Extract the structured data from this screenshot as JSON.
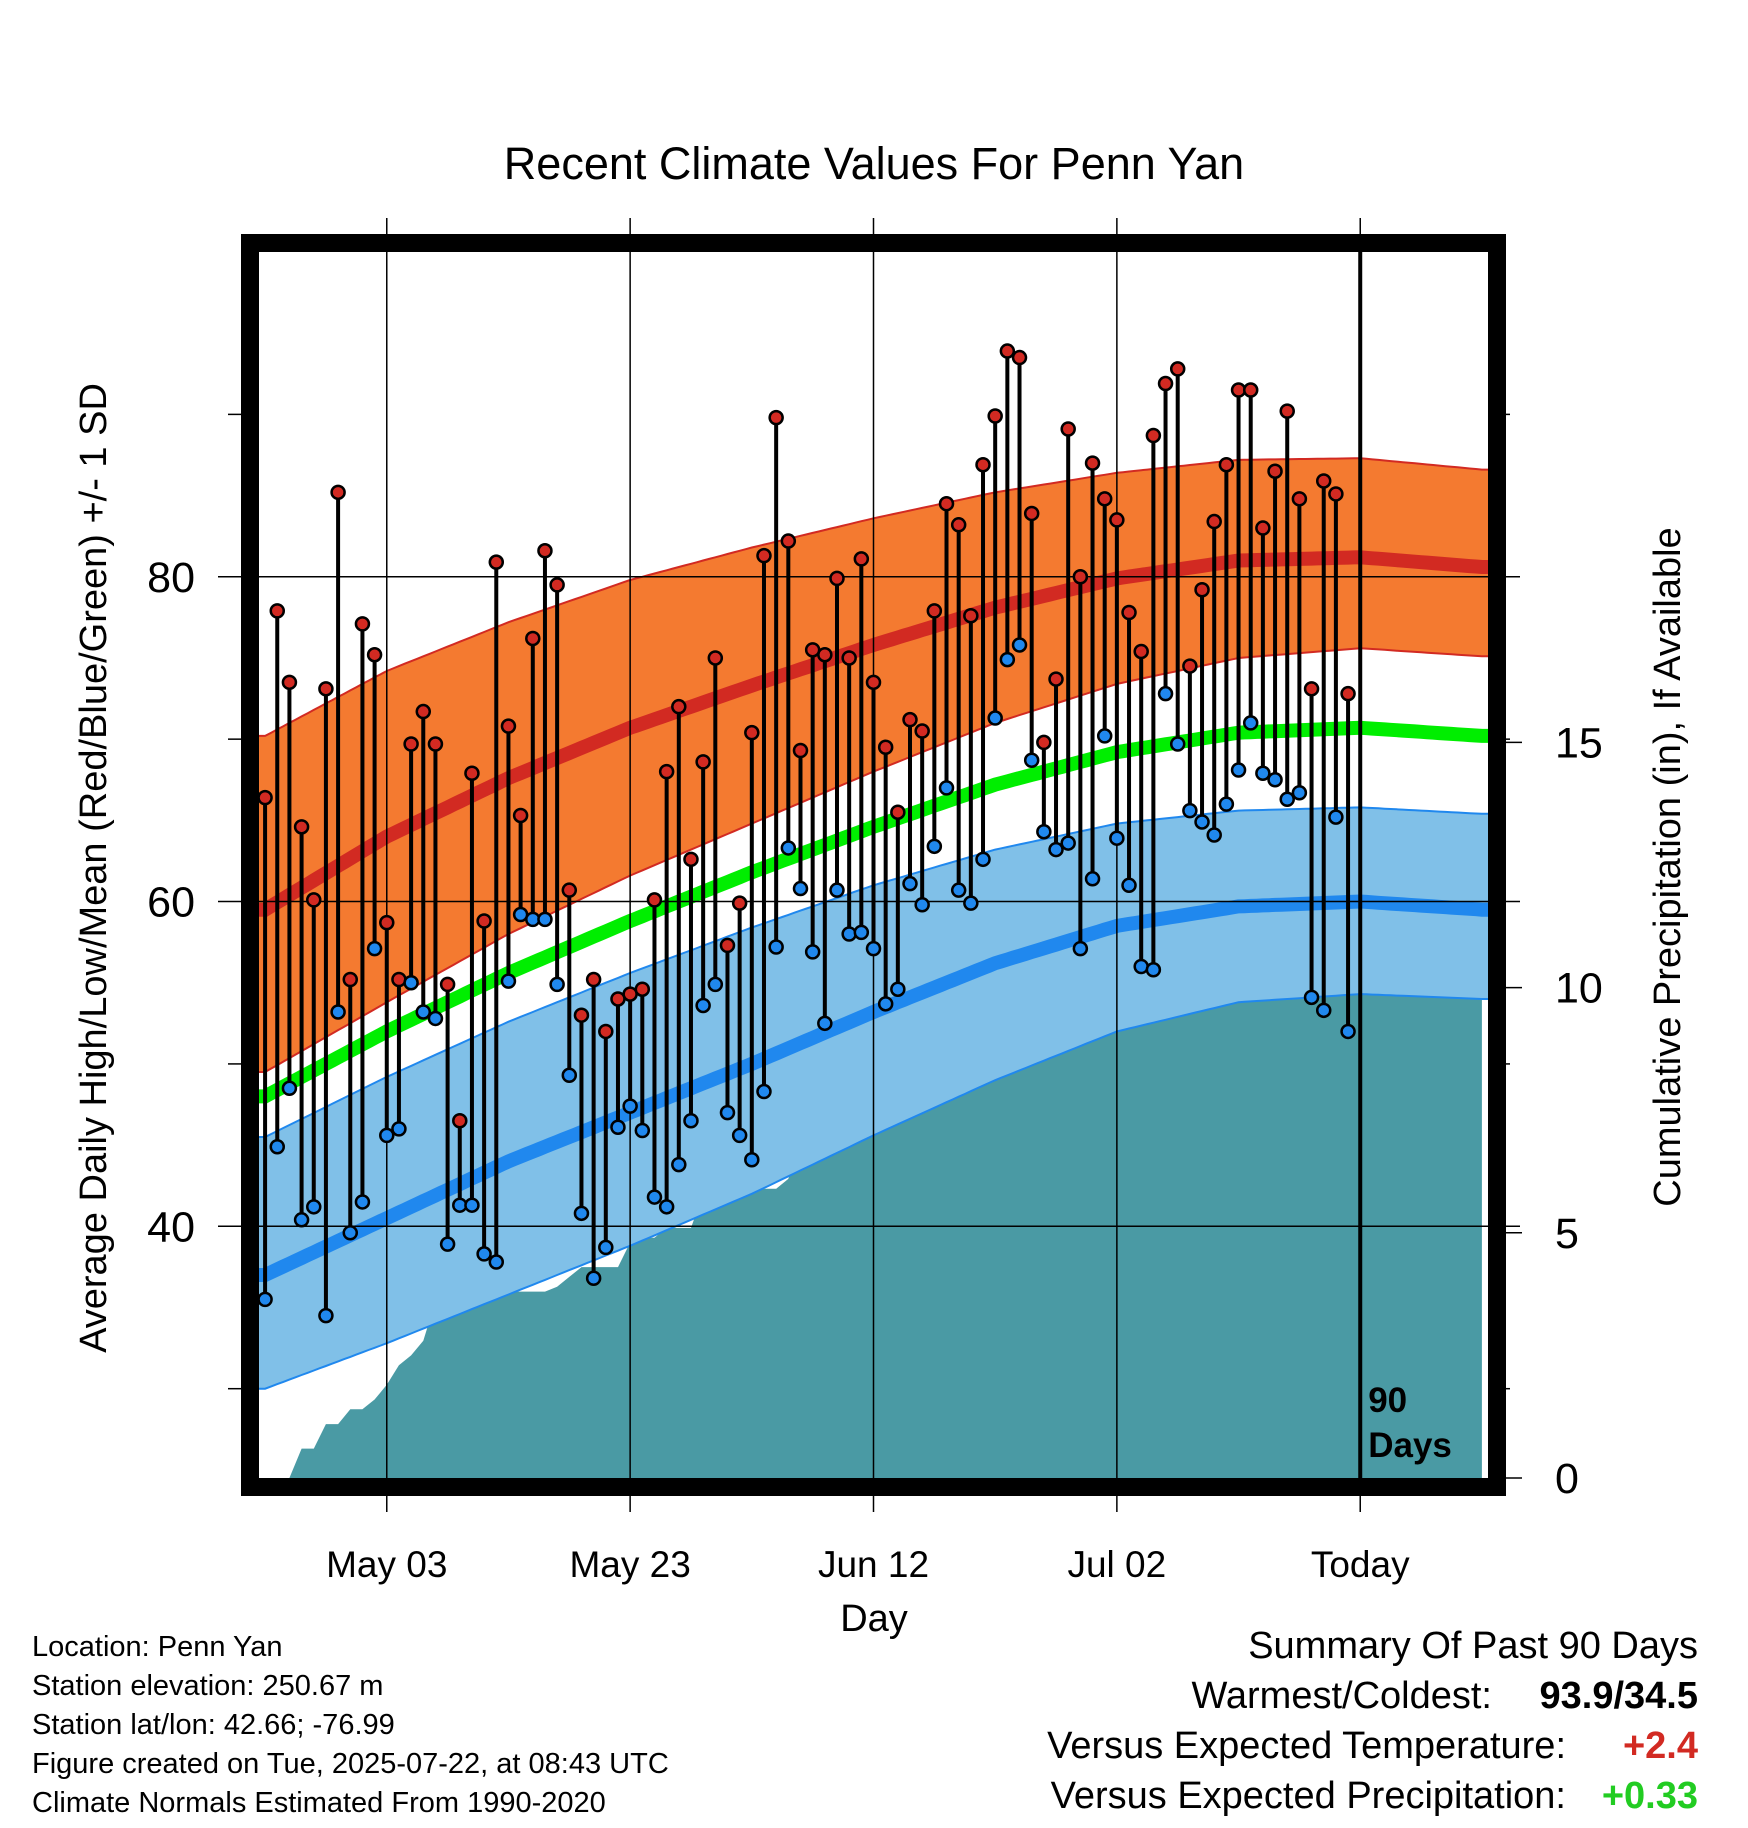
{
  "chart_data": {
    "type": "line",
    "title": "Recent Climate Values For Penn Yan",
    "xlabel": "Day",
    "ylabel": "Average Daily High/Low/Mean (Red/Blue/Green) +/- 1 SD",
    "y2label": "Cumulative Precipitation (in), If Available",
    "x_tick_labels": [
      "May 03",
      "May 23",
      "Jun 12",
      "Jul 02",
      "Today"
    ],
    "x_tick_days": [
      11,
      31,
      51,
      71,
      91
    ],
    "xlim": [
      0.5,
      101.5
    ],
    "ylim": [
      24.5,
      100
    ],
    "y_ticks": [
      40,
      60,
      80
    ],
    "y_tick_labels": [
      "40",
      "60",
      "80"
    ],
    "y_minor_ticks": [
      30,
      50,
      70,
      90
    ],
    "y2lim": [
      0,
      25
    ],
    "y2_ticks": [
      0,
      5,
      10,
      15
    ],
    "y2_tick_labels": [
      "0",
      "5",
      "10",
      "15"
    ],
    "grid": true,
    "today_label": [
      "90",
      "Days"
    ],
    "colors": {
      "high": "#d22a22",
      "high_band": "#f47a30",
      "low": "#2088ee",
      "low_band": "#80c0e8",
      "mean": "#00ee00",
      "precip": "#4a9aa4",
      "plus_red": "#d22a22",
      "plus_green": "#22cc22"
    },
    "normals": {
      "days": [
        1,
        11,
        21,
        31,
        41,
        51,
        61,
        71,
        81,
        91,
        101
      ],
      "high_mean": [
        59.5,
        64.0,
        67.6,
        70.7,
        73.3,
        75.8,
        78.1,
        79.9,
        81.0,
        81.2,
        80.6
      ],
      "high_upper": [
        70.2,
        74.2,
        77.2,
        79.8,
        81.8,
        83.6,
        85.2,
        86.4,
        87.2,
        87.3,
        86.6
      ],
      "high_lower": [
        49.5,
        53.8,
        58.0,
        61.6,
        64.8,
        68.0,
        71.0,
        73.4,
        75.0,
        75.6,
        75.1
      ],
      "mean": [
        48.0,
        52.0,
        55.6,
        58.8,
        61.8,
        64.6,
        67.2,
        69.2,
        70.4,
        70.7,
        70.2
      ],
      "low_mean": [
        37.0,
        40.5,
        44.0,
        47.0,
        50.0,
        53.2,
        56.2,
        58.5,
        59.7,
        60.0,
        59.5
      ],
      "low_upper": [
        45.5,
        49.2,
        52.6,
        55.6,
        58.4,
        61.0,
        63.2,
        64.8,
        65.6,
        65.8,
        65.4
      ],
      "low_lower": [
        30.0,
        32.8,
        35.8,
        38.8,
        42.0,
        45.6,
        49.0,
        52.0,
        53.8,
        54.3,
        54.0
      ]
    },
    "daily_high": [
      66.4,
      77.9,
      73.5,
      64.6,
      60.1,
      73.1,
      85.2,
      55.2,
      77.1,
      75.2,
      58.7,
      55.2,
      69.7,
      71.7,
      69.7,
      54.9,
      46.5,
      67.9,
      58.8,
      80.9,
      70.8,
      65.3,
      76.2,
      81.6,
      79.5,
      60.7,
      53.0,
      55.2,
      52.0,
      54.0,
      54.3,
      54.6,
      60.1,
      68.0,
      72.0,
      62.6,
      68.6,
      75.0,
      57.3,
      59.9,
      70.4,
      81.3,
      89.8,
      82.2,
      69.3,
      75.5,
      75.2,
      79.9,
      75.0,
      81.1,
      73.5,
      69.5,
      65.5,
      71.2,
      70.5,
      77.9,
      84.5,
      83.2,
      77.6,
      86.9,
      89.9,
      93.9,
      93.5,
      83.9,
      69.8,
      73.7,
      89.1,
      80.0,
      87.0,
      84.8,
      83.5,
      77.8,
      75.4,
      88.7,
      91.9,
      92.8,
      74.5,
      79.2,
      83.4,
      86.9,
      91.5,
      91.5,
      83.0,
      86.5,
      90.2,
      84.8,
      73.1,
      85.9,
      85.1,
      72.8
    ],
    "daily_low": [
      35.5,
      44.9,
      48.5,
      40.4,
      41.2,
      34.5,
      53.2,
      39.6,
      41.5,
      57.1,
      45.6,
      46.0,
      55.0,
      53.2,
      52.8,
      38.9,
      41.3,
      41.3,
      38.3,
      37.8,
      55.1,
      59.2,
      58.9,
      58.9,
      54.9,
      49.3,
      40.8,
      36.8,
      38.7,
      46.1,
      47.4,
      45.9,
      41.8,
      41.2,
      43.8,
      46.5,
      53.6,
      54.9,
      47.0,
      45.6,
      44.1,
      48.3,
      57.2,
      63.3,
      60.8,
      56.9,
      52.5,
      60.7,
      58.0,
      58.1,
      57.1,
      53.7,
      54.6,
      61.1,
      59.8,
      63.4,
      67.0,
      60.7,
      59.9,
      62.6,
      71.3,
      74.9,
      75.8,
      68.7,
      64.3,
      63.2,
      63.6,
      57.1,
      61.4,
      70.2,
      63.9,
      61.0,
      56.0,
      55.8,
      72.8,
      69.7,
      65.6,
      64.9,
      64.1,
      66.0,
      68.1,
      71.0,
      67.9,
      67.5,
      66.3,
      66.7,
      54.1,
      53.3,
      65.2,
      52.0
    ],
    "precip_cumulative": {
      "days": [
        2,
        3,
        4,
        5,
        6,
        7,
        8,
        9,
        10,
        11,
        12,
        13,
        14,
        15,
        16,
        17,
        18,
        19,
        20,
        21,
        22,
        23,
        24,
        25,
        26,
        27,
        28,
        29,
        30,
        31,
        32,
        33,
        34,
        35,
        36,
        37,
        38,
        39,
        40,
        41,
        42,
        43,
        44,
        45,
        46,
        47,
        48,
        49,
        50,
        51,
        52,
        53,
        54,
        55,
        56,
        57,
        58,
        59,
        60,
        61,
        62,
        63,
        64,
        65,
        66,
        67,
        68,
        69,
        70,
        71,
        72,
        73,
        74,
        75,
        76,
        77,
        78,
        79,
        80,
        81,
        82,
        83,
        84,
        85,
        86,
        87,
        88,
        89,
        90,
        91,
        101
      ],
      "values": [
        0,
        0,
        0.6,
        0.6,
        1.1,
        1.1,
        1.4,
        1.4,
        1.6,
        1.9,
        2.3,
        2.5,
        2.8,
        3.6,
        3.8,
        3.8,
        3.8,
        3.8,
        3.8,
        3.8,
        3.8,
        3.8,
        3.8,
        3.9,
        4.1,
        4.3,
        4.3,
        4.3,
        4.3,
        4.8,
        4.9,
        4.9,
        5.1,
        5.1,
        5.1,
        5.8,
        5.9,
        5.9,
        5.9,
        5.9,
        5.9,
        5.9,
        6.1,
        6.8,
        6.9,
        7.2,
        9.0,
        9.0,
        9.0,
        9.0,
        9.1,
        9.2,
        9.2,
        9.2,
        9.4,
        9.6,
        9.6,
        9.6,
        9.6,
        9.6,
        9.6,
        9.6,
        9.6,
        9.6,
        9.6,
        9.6,
        9.6,
        9.6,
        9.7,
        9.9,
        9.9,
        10.1,
        10.3,
        10.3,
        10.3,
        10.5,
        10.6,
        10.6,
        10.6,
        10.6,
        10.6,
        10.6,
        10.6,
        11.0,
        11.0,
        11.0,
        11.0,
        11.0,
        11.0,
        11.0,
        11.0
      ]
    }
  },
  "footer": {
    "location": "Location: Penn Yan",
    "elevation": "Station elevation: 250.67 m",
    "latlon": "Station lat/lon: 42.66; -76.99",
    "created": "Figure created on Tue, 2025-07-22, at 08:43 UTC",
    "normals": "Climate Normals Estimated From 1990-2020"
  },
  "summary": {
    "title": "Summary Of Past 90 Days",
    "extremes_label": "Warmest/Coldest:",
    "extremes_value": "93.9/34.5",
    "temp_label": "Versus Expected Temperature:",
    "temp_value": "+2.4",
    "precip_label": "Versus Expected Precipitation:",
    "precip_value": "+0.33"
  }
}
